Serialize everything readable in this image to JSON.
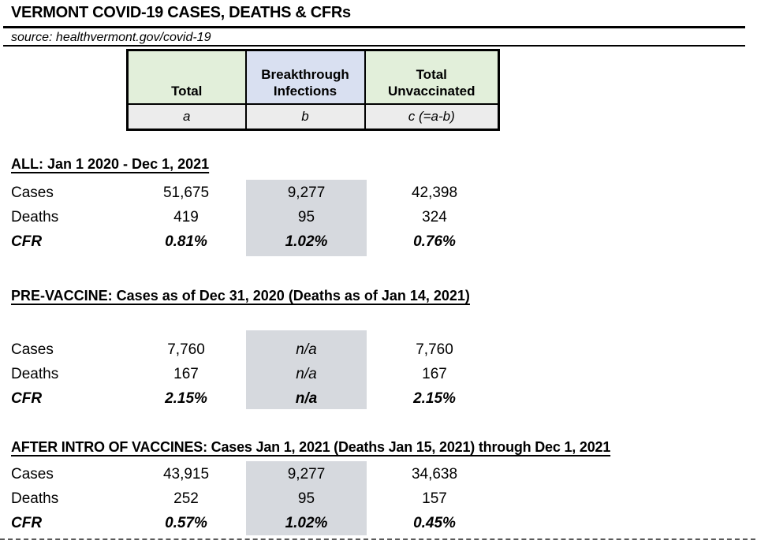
{
  "title": "VERMONT COVID-19 CASES, DEATHS & CFRs",
  "source_line": "source: healthvermont.gov/covid-19",
  "colors": {
    "green_header_bg": "#E2EFDA",
    "blue_header_bg": "#D9E0F1",
    "key_row_bg": "#ECECEC",
    "breakthrough_highlight_bg": "#D6D9DE",
    "border": "#000000"
  },
  "legend_table": {
    "columns": [
      {
        "title_line1": "Total",
        "title_line2": "",
        "key": "a"
      },
      {
        "title_line1": "Breakthrough",
        "title_line2": "Infections",
        "key": "b"
      },
      {
        "title_line1": "Total",
        "title_line2": "Unvaccinated",
        "key": "c (=a-b)"
      }
    ]
  },
  "row_labels": {
    "cases": "Cases",
    "deaths": "Deaths",
    "cfr": "CFR"
  },
  "sections": [
    {
      "heading": "ALL: Jan 1 2020 - Dec 1, 2021",
      "cases": {
        "total": "51,675",
        "breakthrough": "9,277",
        "unvaccinated": "42,398"
      },
      "deaths": {
        "total": "419",
        "breakthrough": "95",
        "unvaccinated": "324"
      },
      "cfr": {
        "total": "0.81%",
        "breakthrough": "1.02%",
        "unvaccinated": "0.76%"
      }
    },
    {
      "heading": "PRE-VACCINE: Cases as of Dec 31, 2020 (Deaths as of Jan 14, 2021)",
      "cases": {
        "total": "7,760",
        "breakthrough": "n/a",
        "unvaccinated": "7,760"
      },
      "deaths": {
        "total": "167",
        "breakthrough": "n/a",
        "unvaccinated": "167"
      },
      "cfr": {
        "total": "2.15%",
        "breakthrough": "n/a",
        "unvaccinated": "2.15%"
      }
    },
    {
      "heading": "AFTER INTRO OF VACCINES: Cases Jan 1, 2021 (Deaths Jan 15, 2021) through Dec 1, 2021",
      "cases": {
        "total": "43,915",
        "breakthrough": "9,277",
        "unvaccinated": "34,638"
      },
      "deaths": {
        "total": "252",
        "breakthrough": "95",
        "unvaccinated": "157"
      },
      "cfr": {
        "total": "0.57%",
        "breakthrough": "1.02%",
        "unvaccinated": "0.45%"
      }
    }
  ]
}
